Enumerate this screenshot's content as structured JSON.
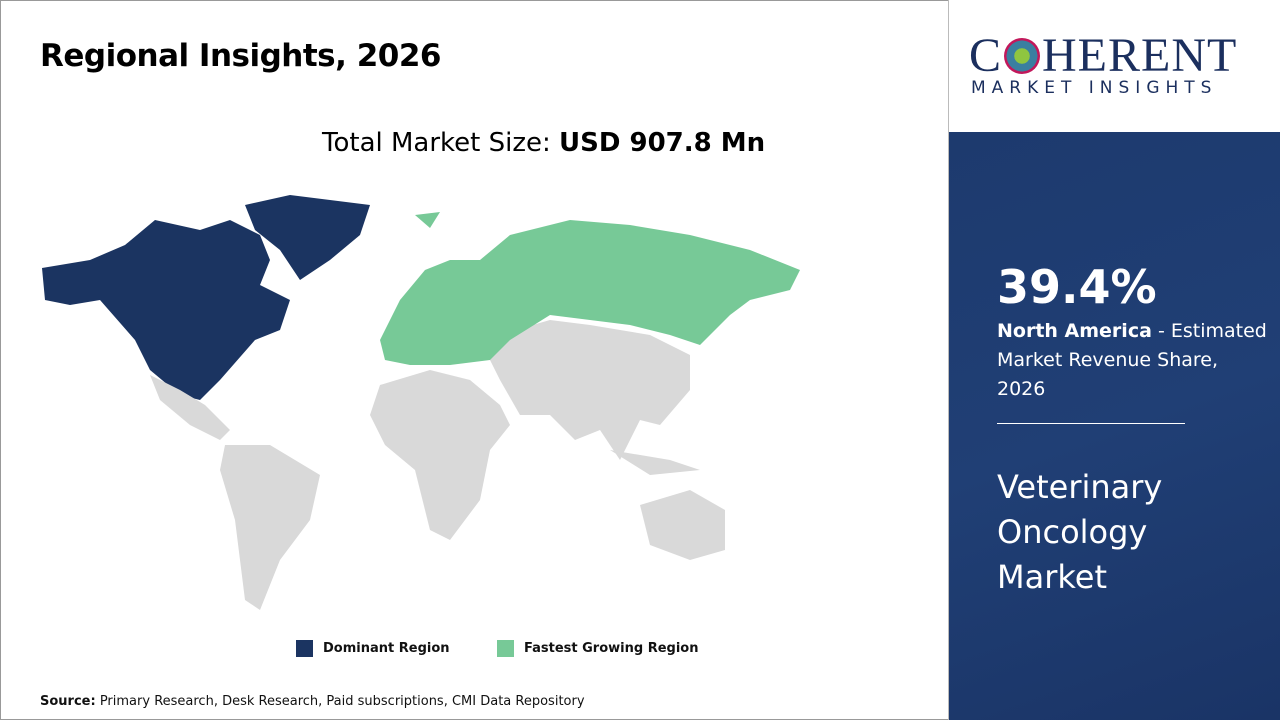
{
  "title": "Regional Insights, 2026",
  "total": {
    "label": "Total Market Size: ",
    "value": "USD 907.8 Mn"
  },
  "legend": [
    {
      "label": "Dominant Region",
      "color": "#1b3461"
    },
    {
      "label": "Fastest Growing Region",
      "color": "#77c997"
    }
  ],
  "map_colors": {
    "dominant": "#1b3461",
    "fastest": "#77c997",
    "other": "#d9d9d9"
  },
  "source": {
    "label": "Source:",
    "text": " Primary Research, Desk Research, Paid subscriptions, CMI Data Repository"
  },
  "logo": {
    "top": "COHERENT",
    "bottom": "MARKET INSIGHTS"
  },
  "side": {
    "percent": "39.4%",
    "region": "North America",
    "desc": " - Estimated Market Revenue Share, 2026",
    "market": "Veterinary Oncology Market"
  }
}
